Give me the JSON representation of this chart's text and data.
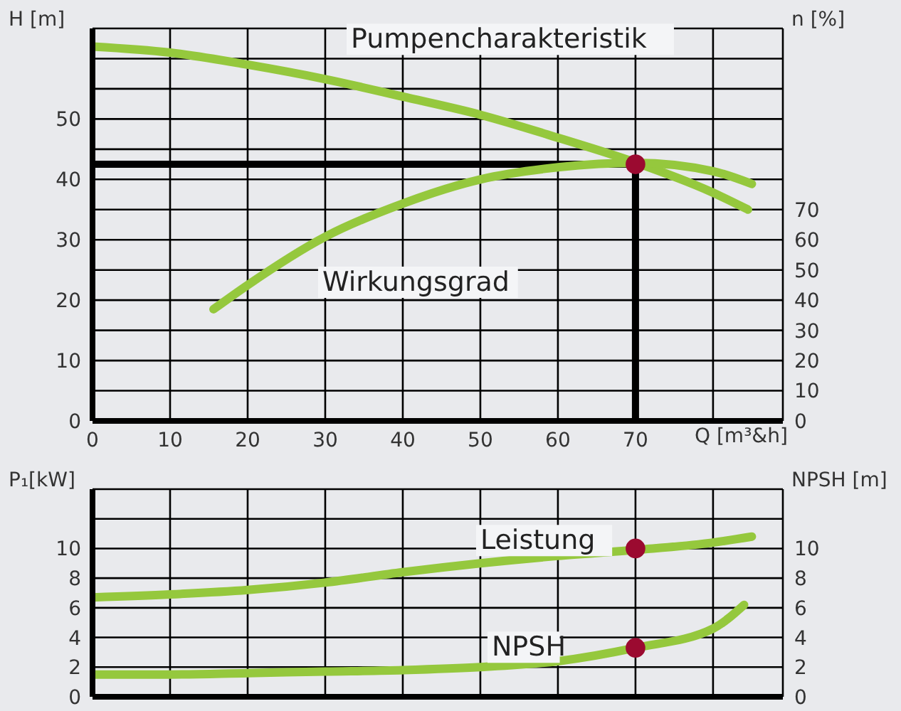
{
  "chart_data": [
    {
      "type": "line",
      "xlabel": "Q [m³&h]",
      "ylabel": "H [m]",
      "y2label": "n [%]",
      "xlim": [
        0,
        89
      ],
      "xticks": [
        0,
        10,
        20,
        30,
        40,
        50,
        60,
        70,
        {
          "value": 80,
          "label": null
        }
      ],
      "ylim": [
        0,
        65
      ],
      "yticks": [
        0,
        {
          "value": 5,
          "label": null
        },
        10,
        {
          "value": 15,
          "label": null
        },
        20,
        {
          "value": 25,
          "label": null
        },
        30,
        {
          "value": 35,
          "label": null
        },
        40,
        {
          "value": 45,
          "label": null
        },
        50,
        {
          "value": 55,
          "label": null
        },
        {
          "value": 60,
          "label": null
        },
        {
          "value": 65,
          "label": null
        }
      ],
      "y2lim": [
        0,
        130
      ],
      "y2ticks": [
        0,
        10,
        20,
        30,
        40,
        50,
        60,
        70
      ],
      "grid": true,
      "line_style": "solid",
      "series": [
        {
          "name": "Pumpencharakteristik",
          "color": "#95c83d",
          "x": [
            0,
            10,
            20,
            30,
            40,
            50,
            60,
            70,
            80,
            84.5
          ],
          "values": [
            62,
            61,
            59,
            56.6,
            53.7,
            50.7,
            46.9,
            42.8,
            37.8,
            35
          ]
        },
        {
          "name": "Wirkungsgrad",
          "color": "#95c83d",
          "axis": "y2",
          "x": [
            15.6,
            20,
            30,
            40,
            50,
            60,
            70,
            80,
            85
          ],
          "values": [
            37,
            45,
            61,
            72,
            80,
            84,
            85.5,
            82.7,
            78.5
          ]
        },
        {
          "type": "scatter",
          "color": "#9b0a30",
          "marker": "circle",
          "x": [
            70
          ],
          "values": [
            42.5
          ]
        }
      ],
      "ref_lines": [
        {
          "axis": "y",
          "value": 42.5,
          "color": "#000000"
        },
        {
          "axis": "x",
          "value": 70,
          "color": "#000000"
        }
      ]
    },
    {
      "type": "line",
      "ylabel": "P₁[kW]",
      "y2label": "NPSH [m]",
      "xlim": [
        0,
        89
      ],
      "xticks": [
        {
          "value": 10,
          "label": null
        },
        {
          "value": 20,
          "label": null
        },
        {
          "value": 30,
          "label": null
        },
        {
          "value": 40,
          "label": null
        },
        {
          "value": 50,
          "label": null
        },
        {
          "value": 60,
          "label": null
        },
        {
          "value": 70,
          "label": null
        },
        {
          "value": 80,
          "label": null
        }
      ],
      "ylim": [
        0,
        14
      ],
      "yticks": [
        0,
        2,
        4,
        6,
        8,
        10,
        {
          "value": 12,
          "label": null
        },
        {
          "value": 14,
          "label": null
        }
      ],
      "y2lim": [
        0,
        14
      ],
      "y2ticks": [
        0,
        2,
        4,
        6,
        8,
        10
      ],
      "grid": true,
      "tick_labels": "y",
      "line_style": "solid",
      "series": [
        {
          "name": "Leistung",
          "color": "#95c83d",
          "x": [
            0,
            10,
            20,
            30,
            40,
            50,
            60,
            70,
            80,
            85
          ],
          "values": [
            6.7,
            6.9,
            7.2,
            7.7,
            8.4,
            9.0,
            9.5,
            9.9,
            10.4,
            10.8
          ]
        },
        {
          "name": "NPSH",
          "color": "#95c83d",
          "axis": "y2",
          "x": [
            0,
            10,
            20,
            30,
            40,
            50,
            60,
            70,
            80,
            84
          ],
          "values": [
            1.5,
            1.5,
            1.6,
            1.7,
            1.8,
            2.0,
            2.4,
            3.3,
            4.6,
            6.2
          ]
        },
        {
          "type": "scatter",
          "color": "#9b0a30",
          "marker": "circle",
          "x": [
            70,
            70
          ],
          "values": [
            10,
            3.3
          ]
        }
      ]
    }
  ]
}
